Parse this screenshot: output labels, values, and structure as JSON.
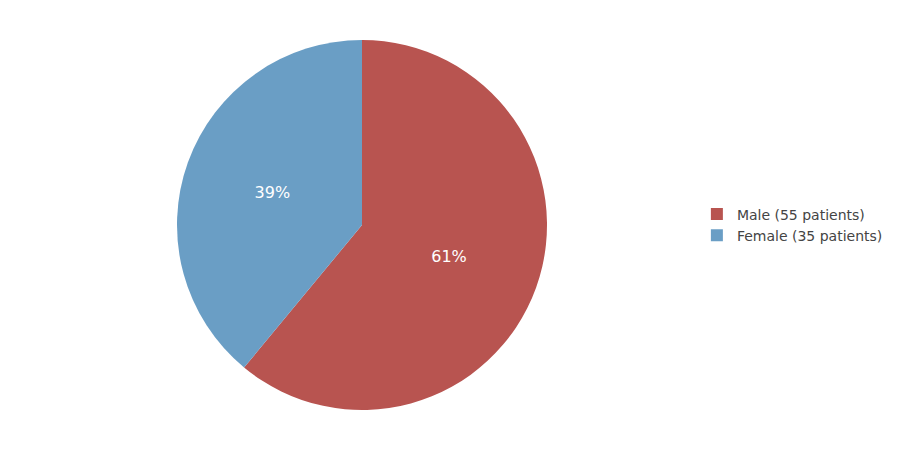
{
  "chart_data": {
    "type": "pie",
    "categories": [
      "Male (55 patients)",
      "Female (35 patients)"
    ],
    "values": [
      61,
      39
    ],
    "value_labels": [
      "61%",
      "39%"
    ],
    "data_labels": true,
    "colors": [
      "#b85450",
      "#6a9ec5"
    ],
    "legend": "right"
  }
}
